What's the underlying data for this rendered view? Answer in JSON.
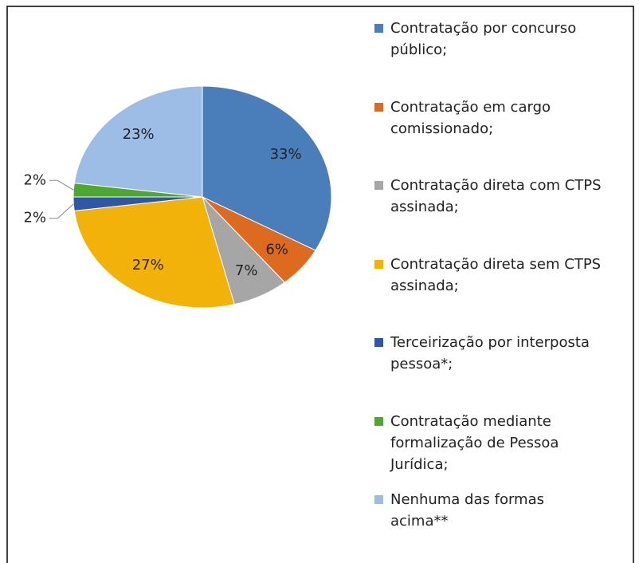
{
  "chart_data": {
    "type": "pie",
    "categories": [
      "Contratação por concurso público;",
      "Contratação em cargo comissionado;",
      "Contratação direta com CTPS assinada;",
      "Contratação direta sem CTPS assinada;",
      "Terceirização por interposta pessoa*;",
      "Contratação mediante formalização de Pessoa Jurídica;",
      "Nenhuma das formas acima**"
    ],
    "values": [
      33,
      6,
      7,
      27,
      2,
      2,
      23
    ],
    "value_labels": [
      "33%",
      "6%",
      "7%",
      "27%",
      "2%",
      "2%",
      "23%"
    ],
    "colors": [
      "#4a7ebb",
      "#dd6a1f",
      "#a6a6a6",
      "#f2b20a",
      "#2f56a8",
      "#4ea72e",
      "#9dbde6"
    ],
    "legend": "right"
  }
}
